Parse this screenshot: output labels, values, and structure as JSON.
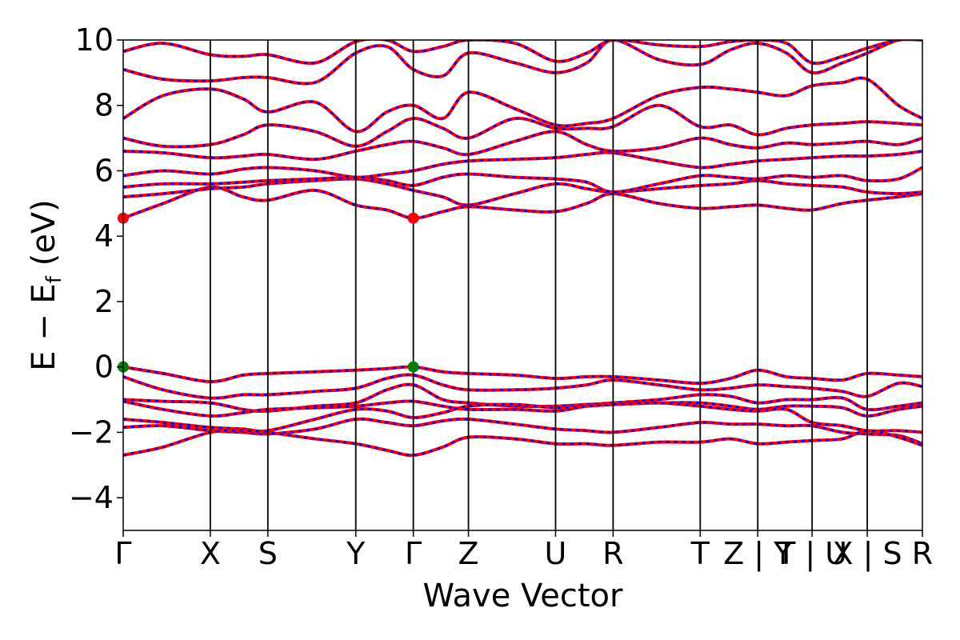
{
  "chart_data": {
    "type": "line",
    "title": "",
    "xlabel": "Wave Vector",
    "ylabel": "E − E_f (eV)",
    "ylabel_main": "E − E",
    "ylabel_sub": "f",
    "ylabel_tail": " (eV)",
    "ylim": [
      -5,
      10
    ],
    "yticks": [
      -4,
      -2,
      0,
      2,
      4,
      6,
      8,
      10
    ],
    "ytick_labels": [
      "−4",
      "−2",
      "0",
      "2",
      "4",
      "6",
      "8",
      "10"
    ],
    "xlim": [
      0,
      1
    ],
    "kpoints": [
      {
        "label": "Γ",
        "x": 0.0
      },
      {
        "label": "X",
        "x": 0.109
      },
      {
        "label": "S",
        "x": 0.181
      },
      {
        "label": "Y",
        "x": 0.291
      },
      {
        "label": "Γ",
        "x": 0.363
      },
      {
        "label": "Z",
        "x": 0.432
      },
      {
        "label": "U",
        "x": 0.541
      },
      {
        "label": "R",
        "x": 0.613
      },
      {
        "label": "T",
        "x": 0.722
      },
      {
        "label": "Z | Y",
        "x": 0.794
      },
      {
        "label": "T | U",
        "x": 0.862
      },
      {
        "label": "X | S",
        "x": 0.931
      },
      {
        "label": "R",
        "x": 1.0
      }
    ],
    "grid": false,
    "band_color": "#ff0000",
    "band_overlay_color": "#0000ff",
    "vbm_color": "#008000",
    "cbm_color": "#ff0000",
    "vbm_points": [
      {
        "x": 0.0,
        "y": 0.0
      },
      {
        "x": 0.363,
        "y": 0.0
      }
    ],
    "cbm_points": [
      {
        "x": 0.0,
        "y": 4.55
      },
      {
        "x": 0.363,
        "y": 4.55
      }
    ],
    "series": [
      {
        "x": [
          0,
          0.05,
          0.109,
          0.15,
          0.181,
          0.24,
          0.291,
          0.33,
          0.363,
          0.4,
          0.432,
          0.49,
          0.541,
          0.58,
          0.613,
          0.67,
          0.722,
          0.76,
          0.794,
          0.83,
          0.862,
          0.9,
          0.931,
          0.97,
          1.0
        ],
        "y": [
          0,
          -0.2,
          -0.45,
          -0.25,
          -0.2,
          -0.15,
          -0.1,
          -0.05,
          0,
          -0.15,
          -0.2,
          -0.25,
          -0.35,
          -0.3,
          -0.3,
          -0.4,
          -0.5,
          -0.35,
          -0.1,
          -0.3,
          -0.35,
          -0.4,
          -0.2,
          -0.25,
          -0.3
        ]
      },
      {
        "x": [
          0,
          0.05,
          0.109,
          0.15,
          0.181,
          0.24,
          0.291,
          0.33,
          0.363,
          0.4,
          0.432,
          0.49,
          0.541,
          0.58,
          0.613,
          0.67,
          0.722,
          0.76,
          0.794,
          0.83,
          0.862,
          0.9,
          0.931,
          0.97,
          1.0
        ],
        "y": [
          -0.3,
          -0.7,
          -0.95,
          -0.85,
          -0.85,
          -0.75,
          -0.65,
          -0.35,
          -0.25,
          -0.55,
          -0.7,
          -0.7,
          -0.65,
          -0.55,
          -0.4,
          -0.55,
          -0.7,
          -0.65,
          -0.55,
          -0.6,
          -0.65,
          -0.75,
          -0.9,
          -0.5,
          -0.6
        ]
      },
      {
        "x": [
          0,
          0.05,
          0.109,
          0.15,
          0.181,
          0.24,
          0.291,
          0.33,
          0.363,
          0.4,
          0.432,
          0.49,
          0.541,
          0.58,
          0.613,
          0.67,
          0.722,
          0.76,
          0.794,
          0.83,
          0.862,
          0.9,
          0.931,
          0.97,
          1.0
        ],
        "y": [
          -1.0,
          -1.05,
          -1.1,
          -1.3,
          -1.35,
          -1.2,
          -1.1,
          -0.7,
          -0.55,
          -1.0,
          -1.1,
          -1.2,
          -1.2,
          -1.15,
          -1.1,
          -1.0,
          -0.85,
          -0.9,
          -1.1,
          -1.0,
          -1.0,
          -0.95,
          -1.3,
          -1.2,
          -1.1
        ]
      },
      {
        "x": [
          0,
          0.05,
          0.109,
          0.15,
          0.181,
          0.24,
          0.291,
          0.33,
          0.363,
          0.4,
          0.432,
          0.49,
          0.541,
          0.58,
          0.613,
          0.67,
          0.722,
          0.76,
          0.794,
          0.83,
          0.862,
          0.9,
          0.931,
          0.97,
          1.0
        ],
        "y": [
          -1.05,
          -1.3,
          -1.5,
          -1.4,
          -1.3,
          -1.25,
          -1.2,
          -1.1,
          -1.05,
          -1.2,
          -1.3,
          -1.3,
          -1.35,
          -1.2,
          -1.15,
          -1.1,
          -1.1,
          -1.2,
          -1.3,
          -1.2,
          -1.2,
          -1.25,
          -1.5,
          -1.3,
          -1.2
        ]
      },
      {
        "x": [
          0,
          0.05,
          0.109,
          0.15,
          0.181,
          0.24,
          0.291,
          0.33,
          0.363,
          0.4,
          0.432,
          0.49,
          0.541,
          0.58,
          0.613,
          0.67,
          0.722,
          0.76,
          0.794,
          0.83,
          0.862,
          0.9,
          0.931,
          0.97,
          1.0
        ],
        "y": [
          -1.6,
          -1.7,
          -1.85,
          -1.9,
          -1.95,
          -1.6,
          -1.3,
          -1.35,
          -1.55,
          -1.4,
          -1.2,
          -1.15,
          -1.25,
          -1.2,
          -1.15,
          -1.1,
          -1.2,
          -1.3,
          -1.35,
          -1.3,
          -1.7,
          -1.8,
          -1.95,
          -1.95,
          -2.0
        ]
      },
      {
        "x": [
          0,
          0.05,
          0.109,
          0.15,
          0.181,
          0.24,
          0.291,
          0.33,
          0.363,
          0.4,
          0.432,
          0.49,
          0.541,
          0.58,
          0.613,
          0.67,
          0.722,
          0.76,
          0.794,
          0.83,
          0.862,
          0.9,
          0.931,
          0.97,
          1.0
        ],
        "y": [
          -1.85,
          -1.8,
          -1.95,
          -2.0,
          -2.05,
          -1.9,
          -1.6,
          -1.7,
          -1.8,
          -1.65,
          -1.6,
          -1.75,
          -1.9,
          -1.95,
          -2.0,
          -1.85,
          -1.7,
          -1.75,
          -1.75,
          -1.8,
          -1.8,
          -2.0,
          -2.05,
          -2.1,
          -2.35
        ]
      },
      {
        "x": [
          0,
          0.05,
          0.109,
          0.15,
          0.181,
          0.24,
          0.291,
          0.33,
          0.363,
          0.4,
          0.432,
          0.49,
          0.541,
          0.58,
          0.613,
          0.67,
          0.722,
          0.76,
          0.794,
          0.83,
          0.862,
          0.9,
          0.931,
          0.97,
          1.0
        ],
        "y": [
          -2.7,
          -2.45,
          -2.0,
          -1.95,
          -2.0,
          -2.2,
          -2.35,
          -2.55,
          -2.7,
          -2.45,
          -2.15,
          -2.2,
          -2.35,
          -2.35,
          -2.4,
          -2.3,
          -2.3,
          -2.2,
          -2.35,
          -2.3,
          -2.25,
          -2.2,
          -1.95,
          -2.15,
          -2.4
        ]
      },
      {
        "x": [
          0,
          0.05,
          0.109,
          0.15,
          0.181,
          0.24,
          0.291,
          0.33,
          0.363,
          0.4,
          0.432,
          0.49,
          0.541,
          0.58,
          0.613,
          0.67,
          0.722,
          0.76,
          0.794,
          0.83,
          0.862,
          0.9,
          0.931,
          0.97,
          1.0
        ],
        "y": [
          4.55,
          5.0,
          5.5,
          5.2,
          5.1,
          5.4,
          4.95,
          4.8,
          4.55,
          4.75,
          4.9,
          4.8,
          4.75,
          5.0,
          5.3,
          5.0,
          4.85,
          4.9,
          4.95,
          4.85,
          4.8,
          5.0,
          5.1,
          5.2,
          5.3
        ]
      },
      {
        "x": [
          0,
          0.05,
          0.109,
          0.15,
          0.181,
          0.24,
          0.291,
          0.33,
          0.363,
          0.4,
          0.432,
          0.49,
          0.541,
          0.58,
          0.613,
          0.67,
          0.722,
          0.76,
          0.794,
          0.83,
          0.862,
          0.9,
          0.931,
          0.97,
          1.0
        ],
        "y": [
          5.2,
          5.3,
          5.45,
          5.5,
          5.6,
          5.7,
          5.75,
          5.6,
          5.4,
          5.2,
          4.95,
          5.3,
          5.6,
          5.45,
          5.35,
          5.45,
          5.55,
          5.6,
          5.7,
          5.6,
          5.55,
          5.5,
          5.35,
          5.3,
          5.35
        ]
      },
      {
        "x": [
          0,
          0.05,
          0.109,
          0.15,
          0.181,
          0.24,
          0.291,
          0.33,
          0.363,
          0.4,
          0.432,
          0.49,
          0.541,
          0.58,
          0.613,
          0.67,
          0.722,
          0.76,
          0.794,
          0.83,
          0.862,
          0.9,
          0.931,
          0.97,
          1.0
        ],
        "y": [
          5.5,
          5.6,
          5.6,
          5.65,
          5.7,
          5.75,
          5.8,
          5.7,
          5.55,
          5.8,
          5.9,
          5.8,
          5.75,
          5.65,
          5.35,
          5.6,
          5.85,
          5.8,
          5.75,
          5.85,
          5.8,
          5.85,
          5.7,
          5.75,
          6.1
        ]
      },
      {
        "x": [
          0,
          0.05,
          0.109,
          0.15,
          0.181,
          0.24,
          0.291,
          0.33,
          0.363,
          0.4,
          0.432,
          0.49,
          0.541,
          0.58,
          0.613,
          0.67,
          0.722,
          0.76,
          0.794,
          0.83,
          0.862,
          0.9,
          0.931,
          0.97,
          1.0
        ],
        "y": [
          5.85,
          6.0,
          5.9,
          6.05,
          6.1,
          6.0,
          5.8,
          5.9,
          6.0,
          6.2,
          6.3,
          6.35,
          6.4,
          6.5,
          6.55,
          6.3,
          6.1,
          6.2,
          6.3,
          6.35,
          6.4,
          6.45,
          6.45,
          6.5,
          6.6
        ]
      },
      {
        "x": [
          0,
          0.05,
          0.109,
          0.15,
          0.181,
          0.24,
          0.291,
          0.33,
          0.363,
          0.4,
          0.432,
          0.49,
          0.541,
          0.58,
          0.613,
          0.67,
          0.722,
          0.76,
          0.794,
          0.83,
          0.862,
          0.9,
          0.931,
          0.97,
          1.0
        ],
        "y": [
          6.6,
          6.55,
          6.4,
          6.45,
          6.5,
          6.35,
          6.6,
          6.8,
          6.9,
          6.7,
          6.5,
          6.9,
          7.2,
          6.8,
          6.6,
          6.7,
          7.0,
          6.8,
          6.7,
          6.85,
          6.8,
          6.85,
          6.9,
          6.8,
          7.0
        ]
      },
      {
        "x": [
          0,
          0.05,
          0.109,
          0.15,
          0.181,
          0.24,
          0.291,
          0.33,
          0.363,
          0.4,
          0.432,
          0.49,
          0.541,
          0.58,
          0.613,
          0.67,
          0.722,
          0.76,
          0.794,
          0.83,
          0.862,
          0.9,
          0.931,
          0.97,
          1.0
        ],
        "y": [
          7.0,
          6.75,
          6.8,
          7.1,
          7.4,
          7.2,
          6.75,
          7.2,
          7.6,
          7.3,
          7.0,
          7.6,
          7.3,
          7.3,
          7.35,
          8.0,
          7.35,
          7.4,
          7.1,
          7.3,
          7.4,
          7.45,
          7.5,
          7.45,
          7.4
        ]
      },
      {
        "x": [
          0,
          0.05,
          0.109,
          0.15,
          0.181,
          0.24,
          0.291,
          0.33,
          0.363,
          0.4,
          0.432,
          0.49,
          0.541,
          0.58,
          0.613,
          0.67,
          0.722,
          0.76,
          0.794,
          0.83,
          0.862,
          0.9,
          0.931,
          0.97,
          1.0
        ],
        "y": [
          7.6,
          8.3,
          8.5,
          8.2,
          7.8,
          8.1,
          7.2,
          7.8,
          8.0,
          7.6,
          8.4,
          7.9,
          7.4,
          7.45,
          7.6,
          8.3,
          8.55,
          8.5,
          8.4,
          8.3,
          8.6,
          8.7,
          8.8,
          8.0,
          7.6
        ]
      },
      {
        "x": [
          0,
          0.05,
          0.109,
          0.15,
          0.181,
          0.24,
          0.291,
          0.33,
          0.363,
          0.4,
          0.432,
          0.49,
          0.541,
          0.58,
          0.613,
          0.67,
          0.722,
          0.76,
          0.794,
          0.83,
          0.862,
          0.9,
          0.931,
          0.97,
          1.0
        ],
        "y": [
          9.1,
          8.8,
          8.75,
          8.85,
          8.85,
          8.7,
          9.6,
          9.8,
          9.1,
          8.9,
          9.6,
          9.3,
          9.0,
          9.3,
          10.0,
          9.4,
          9.25,
          9.7,
          9.9,
          9.6,
          9.0,
          9.3,
          9.6,
          10.0,
          10.0
        ]
      },
      {
        "x": [
          0,
          0.05,
          0.109,
          0.15,
          0.181,
          0.24,
          0.291,
          0.33,
          0.363,
          0.4,
          0.432,
          0.49,
          0.541,
          0.58,
          0.613,
          0.67,
          0.722,
          0.76,
          0.794,
          0.83,
          0.862,
          0.9,
          0.931,
          0.97,
          1.0
        ],
        "y": [
          9.65,
          9.9,
          9.55,
          9.5,
          9.55,
          9.3,
          9.95,
          10.0,
          9.65,
          9.8,
          10.0,
          9.9,
          9.35,
          9.6,
          10.0,
          9.85,
          9.8,
          9.95,
          10.0,
          9.9,
          9.3,
          9.5,
          9.75,
          10.0,
          10.0
        ]
      }
    ]
  }
}
